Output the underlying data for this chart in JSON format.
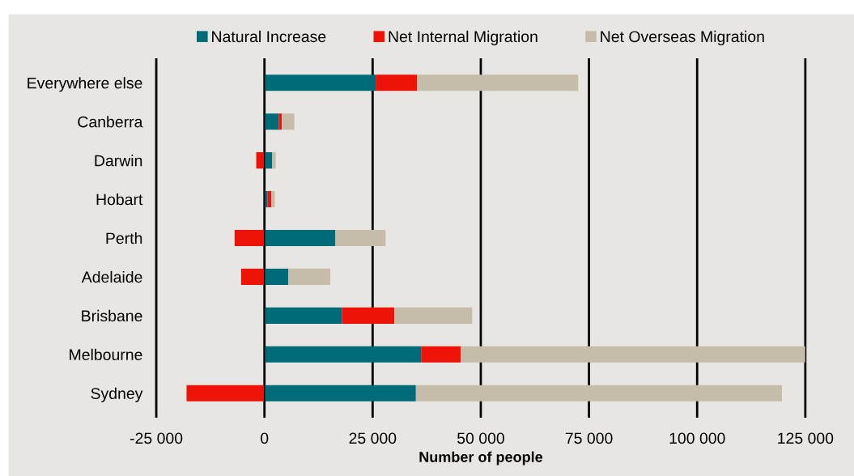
{
  "chart_data": {
    "type": "bar",
    "orientation": "horizontal",
    "stacked": true,
    "xlabel": "Number of people",
    "categories": [
      "Everywhere else",
      "Canberra",
      "Darwin",
      "Hobart",
      "Perth",
      "Adelaide",
      "Brisbane",
      "Melbourne",
      "Sydney"
    ],
    "series": [
      {
        "name": "Natural Increase",
        "color": "#006b78",
        "values": [
          25700,
          3300,
          1800,
          700,
          16400,
          5500,
          17900,
          36200,
          35000
        ]
      },
      {
        "name": "Net Internal Migration",
        "color": "#ee1308",
        "values": [
          9600,
          700,
          -1900,
          900,
          -6900,
          -5400,
          12100,
          9200,
          -18000
        ]
      },
      {
        "name": "Net Overseas Migration",
        "color": "#c5bdaa",
        "values": [
          37200,
          2900,
          800,
          800,
          11600,
          9700,
          18000,
          79600,
          84600
        ]
      }
    ],
    "xlim": [
      -25000,
      125000
    ],
    "xticks": [
      {
        "value": -25000,
        "label": "-25 000"
      },
      0,
      {
        "value": 25000,
        "label": "25 000"
      },
      {
        "value": 50000,
        "label": "50 000"
      },
      {
        "value": 75000,
        "label": "75 000"
      },
      {
        "value": 100000,
        "label": "100 000"
      },
      {
        "value": 125000,
        "label": "125 000"
      }
    ],
    "grid": "x",
    "legend": "top"
  }
}
